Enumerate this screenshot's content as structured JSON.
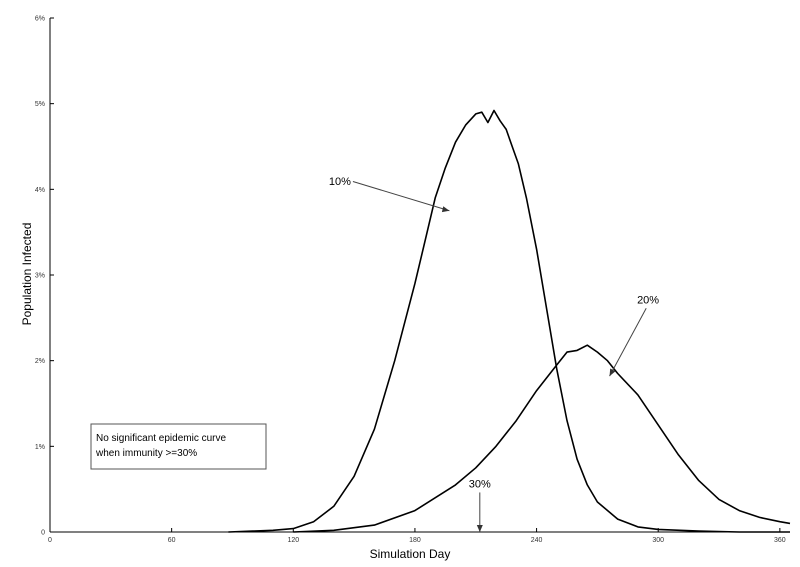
{
  "chart_data": {
    "type": "line",
    "title": "",
    "xlabel": "Simulation Day",
    "ylabel": "Population Infected",
    "xlim": [
      0,
      365
    ],
    "ylim": [
      0,
      6
    ],
    "x_ticks": [
      0,
      60,
      120,
      180,
      240,
      300,
      360
    ],
    "x_tick_labels": [
      "0",
      "60",
      "120",
      "180",
      "240",
      "300",
      "360"
    ],
    "y_ticks": [
      0,
      1,
      2,
      3,
      4,
      5,
      6
    ],
    "y_tick_labels": [
      "0",
      "1%",
      "2%",
      "3%",
      "4%",
      "5%",
      "6%"
    ],
    "grid": false,
    "series": [
      {
        "name": "10%",
        "color": "#000000",
        "x": [
          88,
          100,
          110,
          120,
          130,
          140,
          150,
          160,
          170,
          180,
          185,
          190,
          195,
          200,
          205,
          210,
          213,
          216,
          219,
          222,
          225,
          228,
          231,
          235,
          240,
          245,
          250,
          255,
          260,
          265,
          270,
          280,
          290,
          300,
          320,
          340,
          365
        ],
        "values": [
          0,
          0.01,
          0.02,
          0.04,
          0.12,
          0.3,
          0.65,
          1.2,
          2.0,
          2.9,
          3.4,
          3.9,
          4.25,
          4.55,
          4.75,
          4.88,
          4.9,
          4.78,
          4.92,
          4.8,
          4.7,
          4.5,
          4.3,
          3.9,
          3.3,
          2.6,
          1.9,
          1.3,
          0.85,
          0.55,
          0.35,
          0.15,
          0.06,
          0.03,
          0.01,
          0.0,
          0.0
        ]
      },
      {
        "name": "20%",
        "color": "#000000",
        "x": [
          120,
          140,
          160,
          180,
          200,
          210,
          220,
          230,
          240,
          250,
          255,
          260,
          265,
          270,
          275,
          280,
          290,
          300,
          310,
          320,
          330,
          340,
          350,
          360,
          365
        ],
        "values": [
          0.0,
          0.02,
          0.08,
          0.25,
          0.55,
          0.75,
          1.0,
          1.3,
          1.65,
          1.95,
          2.1,
          2.12,
          2.18,
          2.1,
          2.0,
          1.85,
          1.6,
          1.25,
          0.9,
          0.6,
          0.38,
          0.25,
          0.17,
          0.12,
          0.1
        ]
      }
    ],
    "annotations": [
      {
        "label": "10%",
        "text_x": 143,
        "text_y": 4.05,
        "arrow_x": 197,
        "arrow_y": 3.75
      },
      {
        "label": "20%",
        "text_x": 295,
        "text_y": 2.67,
        "arrow_x": 276,
        "arrow_y": 1.82
      },
      {
        "label": "30%",
        "text_x": 212,
        "text_y": 0.52,
        "arrow_x": 212,
        "arrow_y": 0.0
      }
    ],
    "note": [
      "No significant epidemic curve",
      "when immunity >=30%"
    ]
  }
}
